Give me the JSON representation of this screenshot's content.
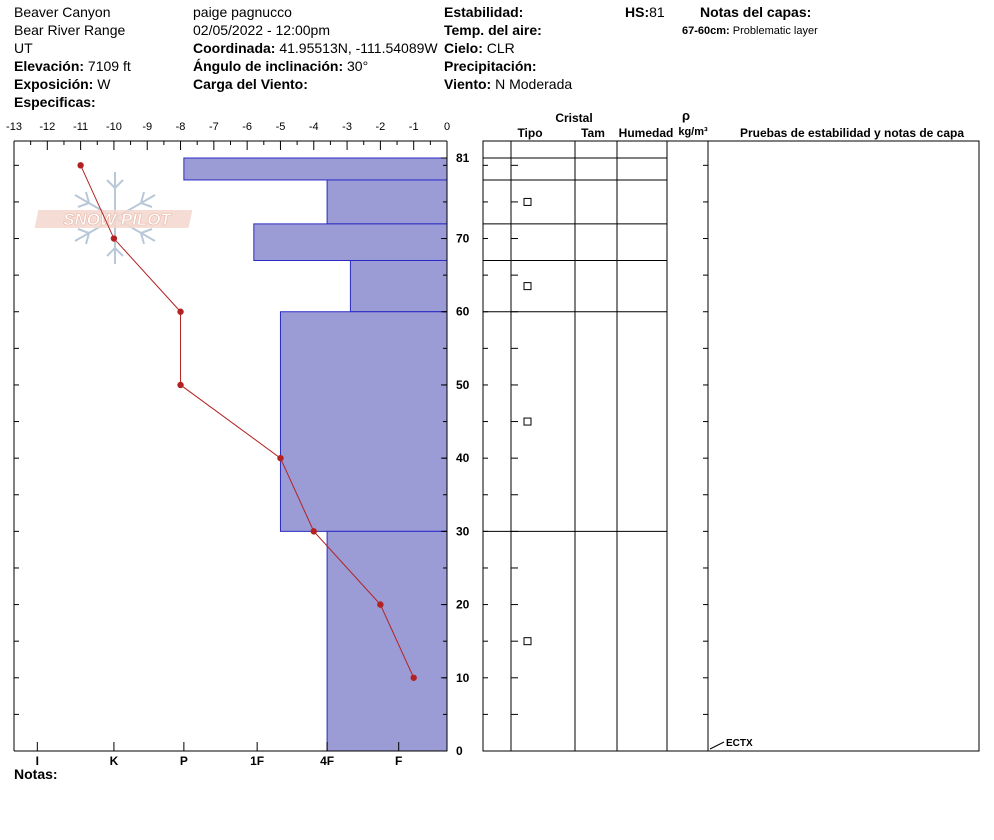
{
  "header": {
    "location": "Beaver Canyon",
    "range": "Bear River Range",
    "state": "UT",
    "elevation_label": "Elevación:",
    "elevation_value": "7109 ft",
    "aspect_label": "Exposición:",
    "aspect_value": "W",
    "specifics_label": "Especificas:",
    "observer": "paige pagnucco",
    "datetime": "02/05/2022 - 12:00pm",
    "coord_label": "Coordinada:",
    "coord_value": "41.95513N, -111.54089W",
    "slope_label": "Ángulo de inclinación:",
    "slope_value": "30°",
    "wind_load_label": "Carga del Viento:",
    "stability_label": "Estabilidad:",
    "air_temp_label": "Temp. del aire:",
    "sky_label": "Cielo:",
    "sky_value": "CLR",
    "precip_label": "Precipitación:",
    "wind_label": "Viento:",
    "wind_value": "N Moderada",
    "hs_label": "HS:",
    "hs_value": "81",
    "layer_notes_label": "Notas del capas:",
    "layer_note_range": "67-60cm:",
    "layer_note_text": "Problematic layer",
    "notes_label": "Notas:"
  },
  "watermark": "SNOW PILOT",
  "chart_data": {
    "type": "snow_profile",
    "temp_axis": {
      "ticks": [
        "-13",
        "-12",
        "-11",
        "-10",
        "-9",
        "-8",
        "-7",
        "-6",
        "-5",
        "-4",
        "-3",
        "-2",
        "-1",
        "0"
      ],
      "range": [
        -13,
        0
      ]
    },
    "hardness_axis": {
      "ticks": [
        "I",
        "K",
        "P",
        "1F",
        "4F",
        "F"
      ]
    },
    "depth_axis": {
      "ticks": [
        "81",
        "70",
        "60",
        "50",
        "40",
        "30",
        "20",
        "10",
        "0"
      ],
      "range": [
        0,
        81
      ]
    },
    "hardness_layers": [
      {
        "top": 81,
        "bottom": 78,
        "temp_edge": -7.9
      },
      {
        "top": 78,
        "bottom": 72,
        "temp_edge": -3.6
      },
      {
        "top": 72,
        "bottom": 67,
        "temp_edge": -5.8
      },
      {
        "top": 67,
        "bottom": 60,
        "temp_edge": -2.9
      },
      {
        "top": 60,
        "bottom": 30,
        "temp_edge": -5.0
      },
      {
        "top": 30,
        "bottom": 0,
        "temp_edge": -3.6
      }
    ],
    "temperature_profile": [
      {
        "depth": 80,
        "temp": -11
      },
      {
        "depth": 70,
        "temp": -10
      },
      {
        "depth": 60,
        "temp": -8
      },
      {
        "depth": 50,
        "temp": -8
      },
      {
        "depth": 40,
        "temp": -5
      },
      {
        "depth": 30,
        "temp": -4
      },
      {
        "depth": 20,
        "temp": -2
      },
      {
        "depth": 10,
        "temp": -1
      }
    ],
    "crystal_markers": [
      {
        "depth": 75
      },
      {
        "depth": 63.5
      },
      {
        "depth": 45
      },
      {
        "depth": 15
      }
    ],
    "layer_boundaries": [
      78,
      72,
      67,
      60,
      30
    ],
    "columns": {
      "crystal_label": "Cristal",
      "type_label": "Tipo",
      "size_label": "Tam",
      "moisture_label": "Humedad",
      "density_symbol": "ρ",
      "density_unit": "kg/m³",
      "tests_label": "Pruebas de estabilidad y notas de capa"
    },
    "tests": [
      {
        "depth": 0,
        "label": "ECTX"
      }
    ]
  }
}
